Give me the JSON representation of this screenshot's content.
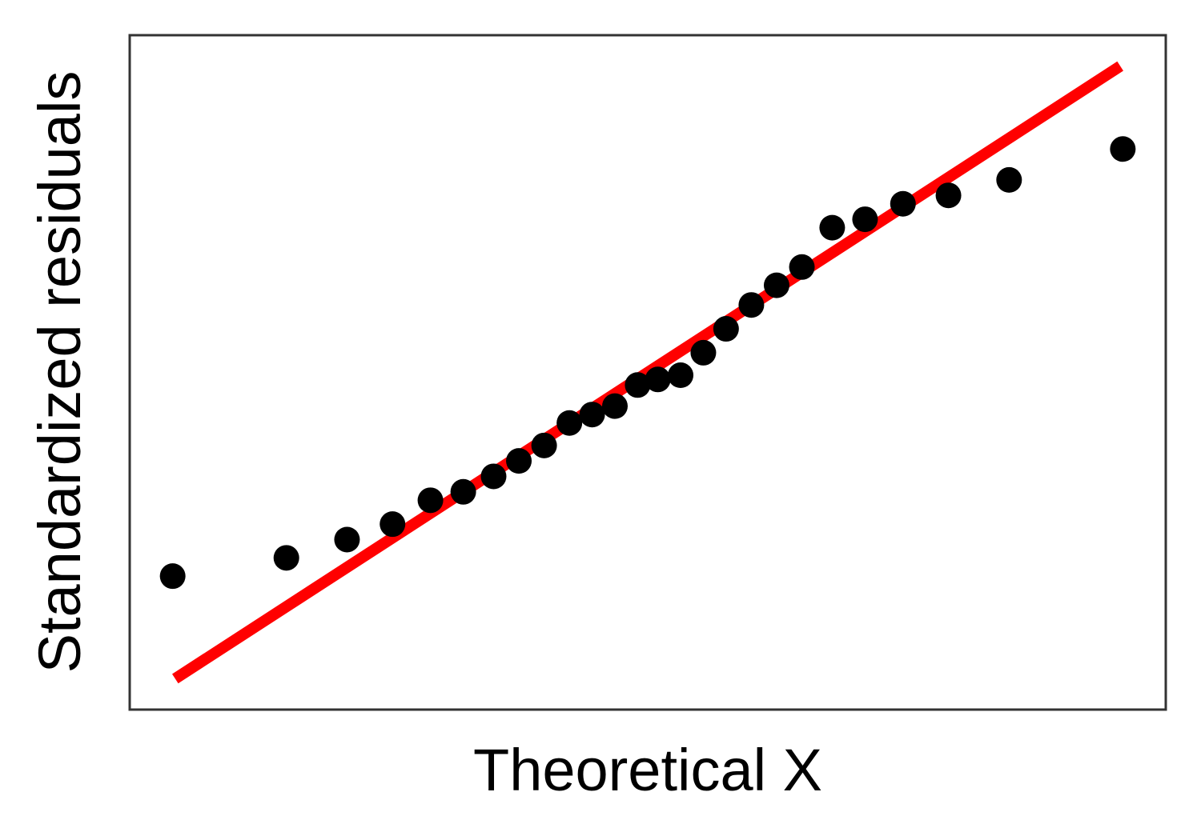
{
  "chart_data": {
    "type": "scatter",
    "title": "",
    "xlabel": "Theoretical X",
    "ylabel": "Standardized residuals",
    "xlim": [
      -2.05,
      2.05
    ],
    "ylim": [
      -2.4,
      2.4
    ],
    "grid": false,
    "legend": "none",
    "x_ticks_shown": false,
    "y_ticks_shown": false,
    "colors": {
      "points": "#000000",
      "reference_line": "#ff0000",
      "frame": "#333333"
    },
    "reference_line": {
      "x": [
        -1.87,
        1.87
      ],
      "y": [
        -2.18,
        2.18
      ]
    },
    "series": [
      {
        "type": "scatter",
        "x": [
          -1.88,
          -1.43,
          -1.19,
          -1.01,
          -0.86,
          -0.73,
          -0.61,
          -0.51,
          -0.41,
          -0.31,
          -0.22,
          -0.13,
          -0.04,
          0.04,
          0.13,
          0.22,
          0.31,
          0.41,
          0.51,
          0.61,
          0.73,
          0.86,
          1.01,
          1.19,
          1.43,
          1.88
        ],
        "y": [
          -1.45,
          -1.32,
          -1.19,
          -1.08,
          -0.91,
          -0.85,
          -0.74,
          -0.63,
          -0.52,
          -0.36,
          -0.3,
          -0.24,
          -0.09,
          -0.05,
          -0.02,
          0.14,
          0.31,
          0.48,
          0.62,
          0.75,
          1.03,
          1.09,
          1.2,
          1.26,
          1.37,
          1.59
        ]
      }
    ]
  }
}
